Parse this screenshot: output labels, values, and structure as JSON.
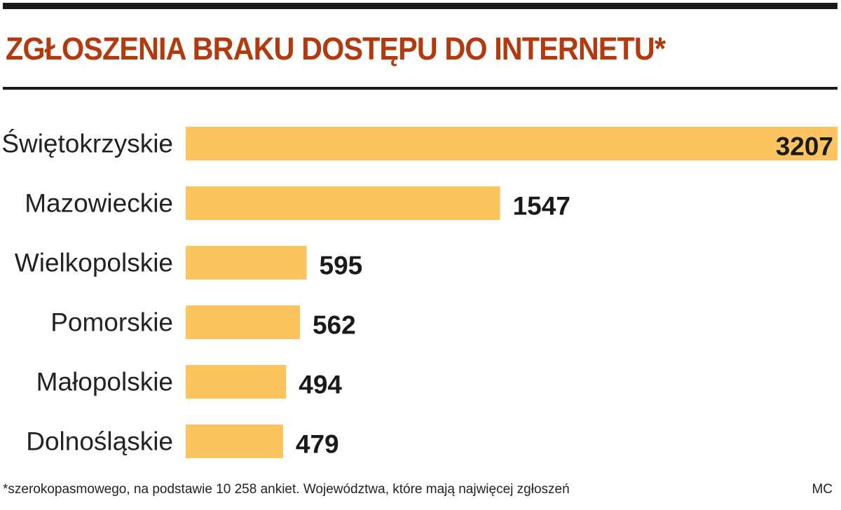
{
  "colors": {
    "title": "#b33a0f",
    "bar": "#fcc45f",
    "rule": "#1a1a1a",
    "text": "#222222"
  },
  "chart_data": {
    "type": "bar",
    "orientation": "horizontal",
    "title": "ZGŁOSZENIA BRAKU DOSTĘPU DO INTERNETU*",
    "categories": [
      "Świętokrzyskie",
      "Mazowieckie",
      "Wielkopolskie",
      "Pomorskie",
      "Małopolskie",
      "Dolnośląskie"
    ],
    "values": [
      3207,
      1547,
      595,
      562,
      494,
      479
    ],
    "value_labels": [
      "3207",
      "1547",
      "595",
      "562",
      "494",
      "479"
    ],
    "xlim": [
      0,
      3207
    ],
    "grid": false,
    "legend": "none",
    "footnote": "*szerokopasmowego, na podstawie 10 258 ankiet. Województwa, które mają najwięcej zgłoszeń",
    "source": "MC"
  }
}
